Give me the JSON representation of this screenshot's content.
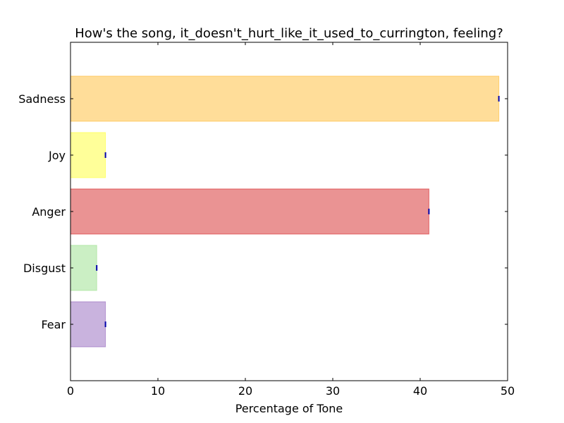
{
  "chart_data": {
    "type": "bar",
    "orientation": "horizontal",
    "title": "How's the song, it_doesn't_hurt_like_it_used_to_currington, feeling?",
    "xlabel": "Percentage of Tone",
    "ylabel": "",
    "xlim": [
      0,
      50
    ],
    "xticks": [
      0,
      10,
      20,
      30,
      40,
      50
    ],
    "grid": false,
    "categories": [
      "Fear",
      "Disgust",
      "Anger",
      "Joy",
      "Sadness"
    ],
    "values": [
      4,
      3,
      41,
      4,
      49
    ],
    "colors": [
      "#9467bd",
      "#98df8a",
      "#d62728",
      "#ffff33",
      "#ffbb33"
    ]
  }
}
